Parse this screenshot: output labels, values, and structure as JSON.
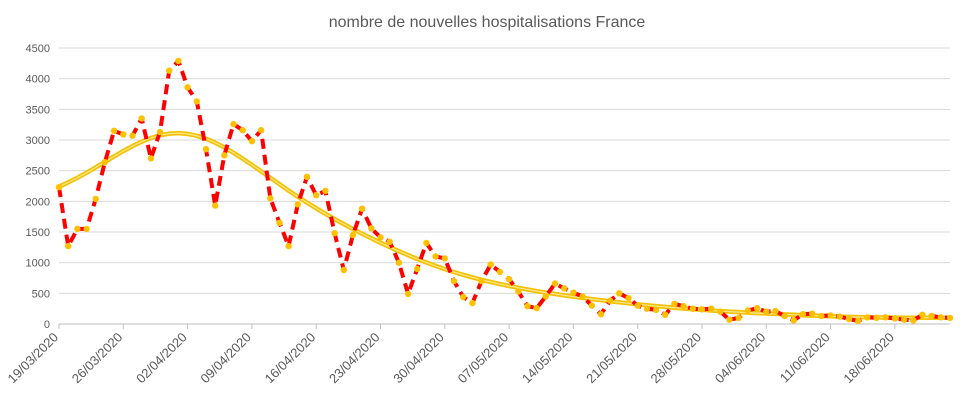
{
  "chart_data": {
    "type": "line",
    "title": "nombre de nouvelles hospitalisations France",
    "xlabel": "",
    "ylabel": "",
    "x_start": "19/03/2020",
    "x_end": "25/06/2020",
    "ylim": [
      0,
      4500
    ],
    "yticks": [
      0,
      500,
      1000,
      1500,
      2000,
      2500,
      3000,
      3500,
      4000,
      4500
    ],
    "xticks": [
      "19/03/2020",
      "26/03/2020",
      "02/04/2020",
      "09/04/2020",
      "16/04/2020",
      "23/04/2020",
      "30/04/2020",
      "07/05/2020",
      "14/05/2020",
      "21/05/2020",
      "28/05/2020",
      "04/06/2020",
      "11/06/2020",
      "18/06/2020"
    ],
    "grid": true,
    "legend": "none",
    "colors": {
      "series_line": "#ff0000",
      "series_markers": "#ffc000",
      "trendline": "#f2c200",
      "gridline": "#d9d9d9",
      "axis": "#bfbfbf"
    },
    "series": [
      {
        "values": [
          2230,
          1270,
          1550,
          1550,
          2040,
          2640,
          3150,
          3090,
          3070,
          3350,
          2700,
          3130,
          4130,
          4290,
          3860,
          3630,
          2850,
          1930,
          2750,
          3260,
          3160,
          2980,
          3160,
          2050,
          1650,
          1270,
          1950,
          2400,
          2100,
          2170,
          1480,
          880,
          1450,
          1880,
          1560,
          1410,
          1340,
          1000,
          490,
          900,
          1320,
          1100,
          1070,
          700,
          440,
          340,
          700,
          970,
          850,
          730,
          530,
          290,
          260,
          450,
          660,
          580,
          510,
          450,
          300,
          160,
          380,
          500,
          420,
          300,
          250,
          230,
          150,
          330,
          290,
          250,
          240,
          250,
          200,
          70,
          100,
          220,
          260,
          200,
          210,
          130,
          60,
          160,
          170,
          130,
          140,
          120,
          80,
          50,
          110,
          100,
          110,
          90,
          70,
          60,
          150,
          130,
          110,
          100
        ]
      }
    ]
  }
}
